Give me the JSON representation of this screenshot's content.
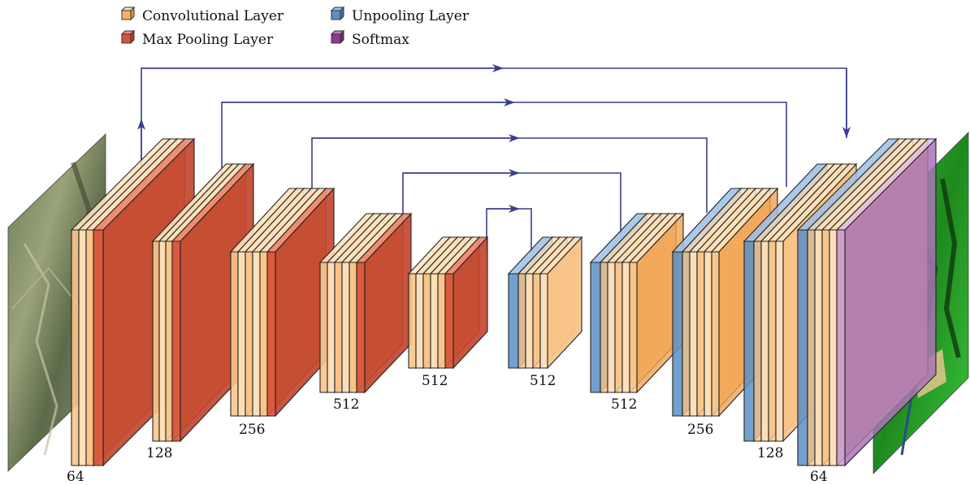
{
  "legend": {
    "items": [
      {
        "key": "conv",
        "label": "Convolutional Layer",
        "color": "#f6b26b"
      },
      {
        "key": "pool",
        "label": "Max Pooling Layer",
        "color": "#d9533b"
      },
      {
        "key": "unpool",
        "label": "Unpooling Layer",
        "color": "#5b8fc7"
      },
      {
        "key": "softmax",
        "label": "Softmax",
        "color": "#8e3a8e"
      }
    ]
  },
  "colors": {
    "conv_light": "#fde3bf",
    "conv_mid": "#f9c58a",
    "conv_dark": "#f0a250",
    "pool": "#d9533b",
    "unpool": "#5b8fc7",
    "softmax": "#c99bd3",
    "arrow": "#3a3e8c"
  },
  "blocks": [
    {
      "label": "64",
      "type": "encoder"
    },
    {
      "label": "128",
      "type": "encoder"
    },
    {
      "label": "256",
      "type": "encoder"
    },
    {
      "label": "512",
      "type": "encoder"
    },
    {
      "label": "512",
      "type": "encoder"
    },
    {
      "label": "512",
      "type": "decoder"
    },
    {
      "label": "512",
      "type": "decoder"
    },
    {
      "label": "256",
      "type": "decoder"
    },
    {
      "label": "128",
      "type": "decoder"
    },
    {
      "label": "64",
      "type": "decoder"
    }
  ],
  "images": {
    "input": "satellite-input-image",
    "output": "segmentation-output-image"
  }
}
